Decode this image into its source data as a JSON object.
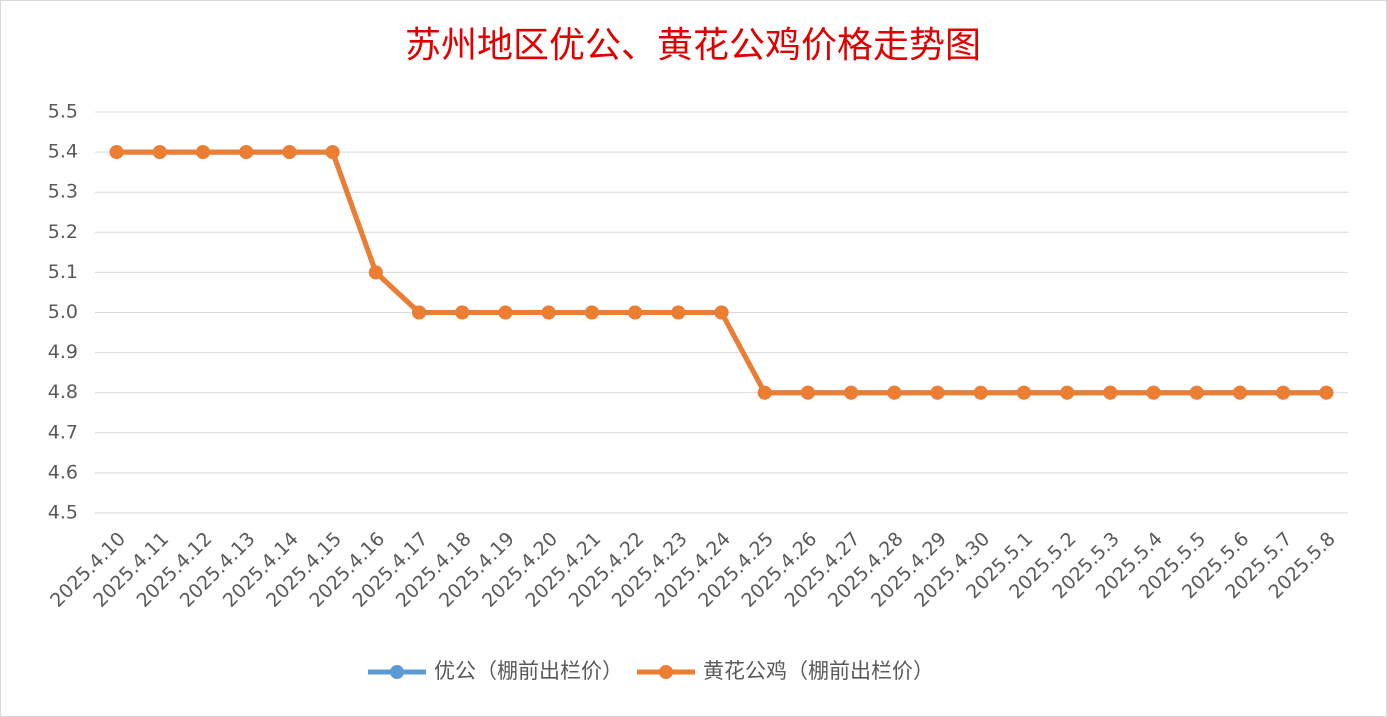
{
  "chart_data": {
    "type": "line",
    "title": "苏州地区优公、黄花公鸡价格走势图",
    "categories": [
      "2025.4.10",
      "2025.4.11",
      "2025.4.12",
      "2025.4.13",
      "2025.4.14",
      "2025.4.15",
      "2025.4.16",
      "2025.4.17",
      "2025.4.18",
      "2025.4.19",
      "2025.4.20",
      "2025.4.21",
      "2025.4.22",
      "2025.4.23",
      "2025.4.24",
      "2025.4.25",
      "2025.4.26",
      "2025.4.27",
      "2025.4.28",
      "2025.4.29",
      "2025.4.30",
      "2025.5.1",
      "2025.5.2",
      "2025.5.3",
      "2025.5.4",
      "2025.5.5",
      "2025.5.6",
      "2025.5.7",
      "2025.5.8"
    ],
    "series": [
      {
        "name": "优公（棚前出栏价）",
        "color": "#5b9bd5",
        "values": [
          5.4,
          5.4,
          5.4,
          5.4,
          5.4,
          5.4,
          5.1,
          5.0,
          5.0,
          5.0,
          5.0,
          5.0,
          5.0,
          5.0,
          5.0,
          4.8,
          4.8,
          4.8,
          4.8,
          4.8,
          4.8,
          4.8,
          4.8,
          4.8,
          4.8,
          4.8,
          4.8,
          4.8,
          4.8
        ]
      },
      {
        "name": "黄花公鸡（棚前出栏价）",
        "color": "#ed7d31",
        "values": [
          5.4,
          5.4,
          5.4,
          5.4,
          5.4,
          5.4,
          5.1,
          5.0,
          5.0,
          5.0,
          5.0,
          5.0,
          5.0,
          5.0,
          5.0,
          4.8,
          4.8,
          4.8,
          4.8,
          4.8,
          4.8,
          4.8,
          4.8,
          4.8,
          4.8,
          4.8,
          4.8,
          4.8,
          4.8
        ]
      }
    ],
    "ylim": [
      4.5,
      5.5
    ],
    "yticks": [
      4.5,
      4.6,
      4.7,
      4.8,
      4.9,
      {
        "value": 5,
        "label": "5.0"
      },
      5.1,
      5.2,
      5.3,
      5.4,
      5.5
    ],
    "grid": true,
    "legend": "bottom"
  }
}
